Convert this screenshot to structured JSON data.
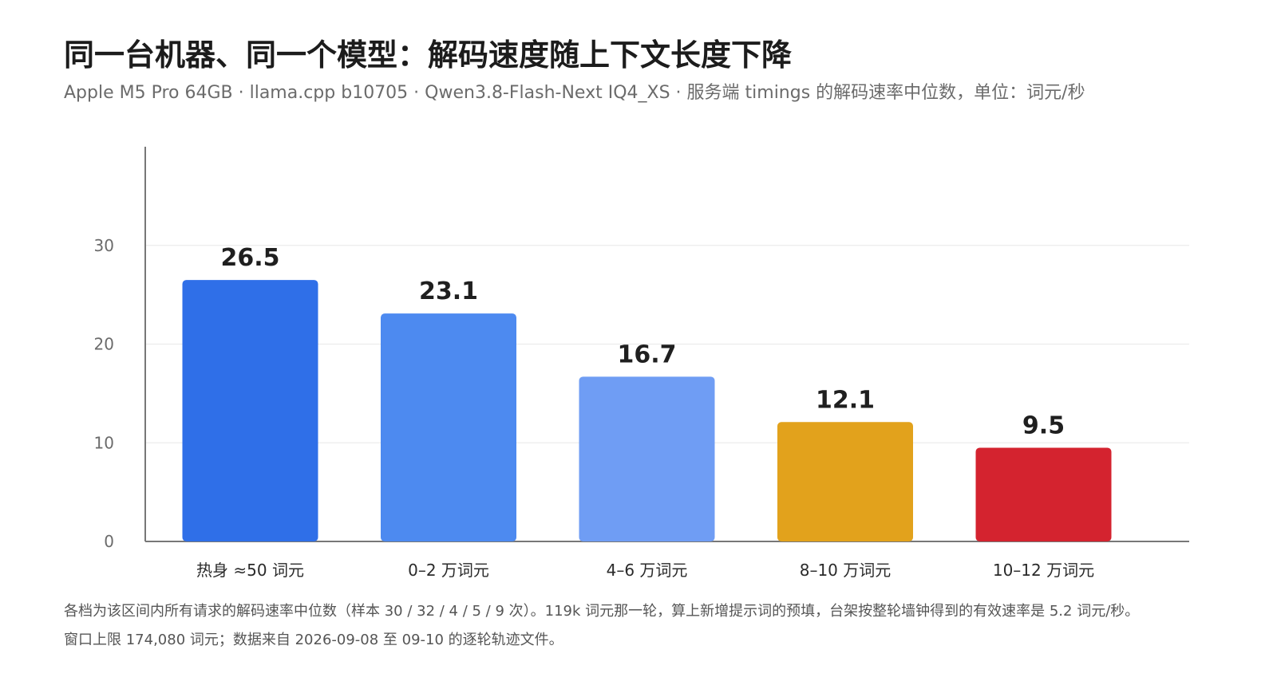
{
  "title": "同一台机器、同一个模型：解码速度随上下文长度下降",
  "subtitle": "Apple M5 Pro 64GB · llama.cpp b10705 · Qwen3.8-Flash-Next IQ4_XS · 服务端 timings 的解码速率中位数，单位：词元/秒",
  "footnote_line1": "各档为该区间内所有请求的解码速率中位数（样本 30 / 32 / 4 / 5 / 9 次）。119k 词元那一轮，算上新增提示词的预填，台架按整轮墙钟得到的有效速率是 5.2 词元/秒。",
  "footnote_line2": "窗口上限 174,080 词元；数据来自 2026-09-08 至 09-10 的逐轮轨迹文件。",
  "chart_data": {
    "type": "bar",
    "title": "同一台机器、同一个模型：解码速度随上下文长度下降",
    "xlabel": "",
    "ylabel": "",
    "categories": [
      "热身 ≈50 词元",
      "0–2 万词元",
      "4–6 万词元",
      "8–10 万词元",
      "10–12 万词元"
    ],
    "values": [
      26.5,
      23.1,
      16.7,
      12.1,
      9.5
    ],
    "value_labels": [
      "26.5",
      "23.1",
      "16.7",
      "12.1",
      "9.5"
    ],
    "colors": [
      "#2f6fe8",
      "#4d8af0",
      "#6f9df4",
      "#e2a21c",
      "#d4232f"
    ],
    "ylim": [
      0,
      40
    ],
    "yticks": [
      0,
      10,
      20,
      30
    ],
    "grid": true,
    "legend": "none"
  }
}
